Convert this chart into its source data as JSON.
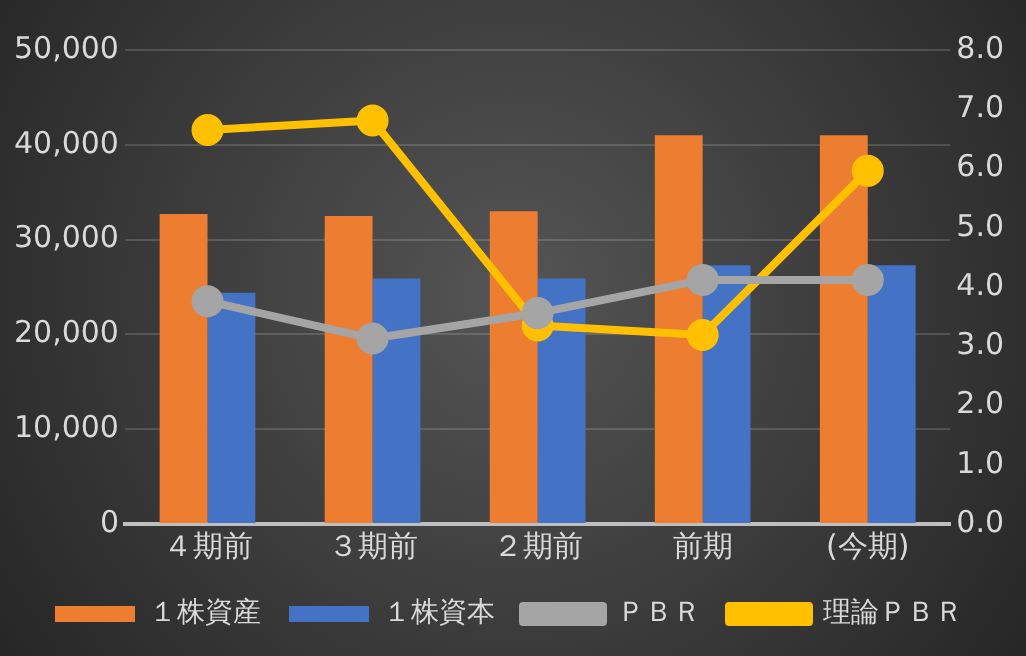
{
  "chart_data": {
    "type": "bar",
    "categories": [
      "４期前",
      "３期前",
      "２期前",
      "前期",
      "(今期)"
    ],
    "series": [
      {
        "name": "１株資産",
        "color": "#ed7d31",
        "values": [
          32700,
          32500,
          33000,
          41000,
          41000
        ]
      },
      {
        "name": "１株資本",
        "color": "#4472c4",
        "values": [
          24400,
          25900,
          25900,
          27300,
          27300
        ]
      },
      {
        "name": "ＰＢＲ",
        "type": "line",
        "axis": "y2",
        "color": "#a5a5a5",
        "values": [
          3.76,
          3.13,
          3.56,
          4.12,
          4.12
        ]
      },
      {
        "name": "理論ＰＢＲ",
        "type": "line",
        "axis": "y2",
        "color": "#ffc000",
        "values": [
          6.65,
          6.81,
          3.35,
          3.19,
          5.96
        ]
      }
    ],
    "ylim": [
      0,
      50000
    ],
    "yticks": [
      {
        "value": 0,
        "label": "0"
      },
      {
        "value": 10000,
        "label": "10,000"
      },
      {
        "value": 20000,
        "label": "20,000"
      },
      {
        "value": 30000,
        "label": "30,000"
      },
      {
        "value": 40000,
        "label": "40,000"
      },
      {
        "value": 50000,
        "label": "50,000"
      }
    ],
    "y2lim": [
      0,
      8
    ],
    "y2ticks": [
      {
        "value": 0,
        "label": "0.0"
      },
      {
        "value": 1,
        "label": "1.0"
      },
      {
        "value": 2,
        "label": "2.0"
      },
      {
        "value": 3,
        "label": "3.0"
      },
      {
        "value": 4,
        "label": "4.0"
      },
      {
        "value": 5,
        "label": "5.0"
      },
      {
        "value": 6,
        "label": "6.0"
      },
      {
        "value": 7,
        "label": "7.0"
      },
      {
        "value": 8,
        "label": "8.0"
      }
    ],
    "grid": "y",
    "legend": "bottom",
    "marker": "circle"
  }
}
